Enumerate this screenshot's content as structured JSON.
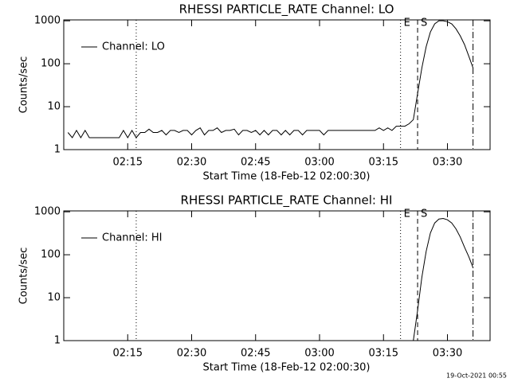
{
  "footer": "19-Oct-2021 00:55",
  "chart_data": [
    {
      "type": "line",
      "title": "RHESSI PARTICLE_RATE Channel: LO",
      "xlabel": "Start Time (18-Feb-12 02:00:30)",
      "ylabel": "Counts/sec",
      "x": [
        "02:01",
        "02:02",
        "02:03",
        "02:04",
        "02:05",
        "02:06",
        "02:07",
        "02:08",
        "02:09",
        "02:10",
        "02:11",
        "02:12",
        "02:13",
        "02:14",
        "02:15",
        "02:16",
        "02:17",
        "02:18",
        "02:19",
        "02:20",
        "02:21",
        "02:22",
        "02:23",
        "02:24",
        "02:25",
        "02:26",
        "02:27",
        "02:28",
        "02:29",
        "02:30",
        "02:31",
        "02:32",
        "02:33",
        "02:34",
        "02:35",
        "02:36",
        "02:37",
        "02:38",
        "02:39",
        "02:40",
        "02:41",
        "02:42",
        "02:43",
        "02:44",
        "02:45",
        "02:46",
        "02:47",
        "02:48",
        "02:49",
        "02:50",
        "02:51",
        "02:52",
        "02:53",
        "02:54",
        "02:55",
        "02:56",
        "02:57",
        "02:58",
        "02:59",
        "03:00",
        "03:01",
        "03:02",
        "03:03",
        "03:04",
        "03:05",
        "03:06",
        "03:07",
        "03:08",
        "03:09",
        "03:10",
        "03:11",
        "03:12",
        "03:13",
        "03:14",
        "03:15",
        "03:16",
        "03:17",
        "03:18",
        "03:19",
        "03:20",
        "03:21",
        "03:22",
        "03:23",
        "03:24",
        "03:25",
        "03:26",
        "03:27",
        "03:28",
        "03:29",
        "03:30",
        "03:31",
        "03:32",
        "03:33",
        "03:34",
        "03:35",
        "03:36"
      ],
      "series": [
        {
          "name": "Channel: LO",
          "color": "#000000",
          "values": [
            2.5,
            1.9,
            2.8,
            1.9,
            2.8,
            1.9,
            1.9,
            1.9,
            1.9,
            1.9,
            1.9,
            1.9,
            1.9,
            2.8,
            1.9,
            2.8,
            1.9,
            2.5,
            2.5,
            3,
            2.5,
            2.5,
            2.8,
            2.2,
            2.8,
            2.8,
            2.5,
            2.8,
            2.8,
            2.2,
            2.8,
            3.2,
            2.2,
            2.8,
            2.8,
            3.2,
            2.5,
            2.8,
            2.8,
            3,
            2.2,
            2.8,
            2.8,
            2.5,
            2.8,
            2.2,
            2.8,
            2.2,
            2.8,
            2.8,
            2.2,
            2.8,
            2.2,
            2.8,
            2.8,
            2.2,
            2.8,
            2.8,
            2.8,
            2.8,
            2.2,
            2.8,
            2.8,
            2.8,
            2.8,
            2.8,
            2.8,
            2.8,
            2.8,
            2.8,
            2.8,
            2.8,
            2.8,
            3.2,
            2.8,
            3.2,
            2.8,
            3.5,
            3.5,
            3.5,
            4,
            5,
            20,
            80,
            250,
            550,
            850,
            1000,
            1000,
            950,
            850,
            650,
            450,
            280,
            150,
            80
          ]
        }
      ],
      "xlim": [
        "02:00",
        "03:40"
      ],
      "xticks": [
        "02:15",
        "02:30",
        "02:45",
        "03:00",
        "03:15",
        "03:30"
      ],
      "ylim": [
        1,
        1050
      ],
      "yticks": [
        1,
        10,
        100,
        1000
      ],
      "log_y": true,
      "legend": "upper left",
      "markers": [
        {
          "x": "02:17",
          "style": "dotted"
        },
        {
          "x": "03:19",
          "style": "dotted",
          "label": "E"
        },
        {
          "x": "03:23",
          "style": "dashed",
          "label": "S"
        },
        {
          "x": "03:36",
          "style": "dashdot"
        }
      ]
    },
    {
      "type": "line",
      "title": "RHESSI PARTICLE_RATE Channel: HI",
      "xlabel": "Start Time (18-Feb-12 02:00:30)",
      "ylabel": "Counts/sec",
      "x": [
        "03:22",
        "03:23",
        "03:24",
        "03:25",
        "03:26",
        "03:27",
        "03:28",
        "03:29",
        "03:30",
        "03:31",
        "03:32",
        "03:33",
        "03:34",
        "03:35",
        "03:36"
      ],
      "series": [
        {
          "name": "Channel: HI",
          "color": "#000000",
          "values": [
            1,
            5,
            30,
            120,
            320,
            550,
            680,
            700,
            650,
            550,
            400,
            260,
            150,
            90,
            50
          ]
        }
      ],
      "xlim": [
        "02:00",
        "03:40"
      ],
      "xticks": [
        "02:15",
        "02:30",
        "02:45",
        "03:00",
        "03:15",
        "03:30"
      ],
      "ylim": [
        1,
        1050
      ],
      "yticks": [
        1,
        10,
        100,
        1000
      ],
      "log_y": true,
      "legend": "upper left",
      "markers": [
        {
          "x": "02:17",
          "style": "dotted"
        },
        {
          "x": "03:19",
          "style": "dotted",
          "label": "E"
        },
        {
          "x": "03:23",
          "style": "dashed",
          "label": "S"
        },
        {
          "x": "03:36",
          "style": "dashdot"
        }
      ]
    }
  ]
}
